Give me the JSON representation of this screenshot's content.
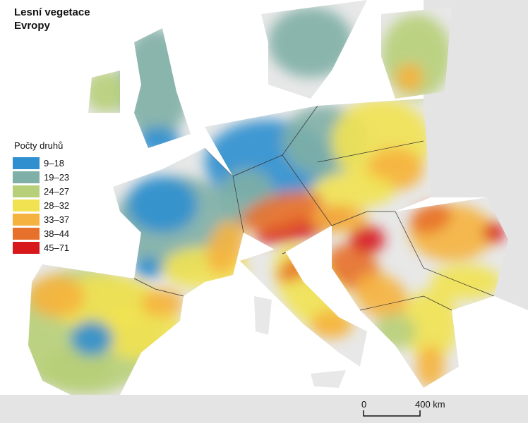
{
  "header": {
    "title_lines": [
      "Lesní vegetace",
      "Evropy"
    ]
  },
  "legend": {
    "title": "Počty druhů",
    "items": [
      {
        "label": "9–18",
        "color": "#2f8fcf"
      },
      {
        "label": "19–23",
        "color": "#7fafa6"
      },
      {
        "label": "24–27",
        "color": "#b7cf78"
      },
      {
        "label": "28–32",
        "color": "#f1e252"
      },
      {
        "label": "33–37",
        "color": "#f5b23f"
      },
      {
        "label": "38–44",
        "color": "#e7702a"
      },
      {
        "label": "45–71",
        "color": "#d7191c"
      }
    ]
  },
  "scale_bar": {
    "labels": [
      "0",
      "400 km"
    ]
  }
}
